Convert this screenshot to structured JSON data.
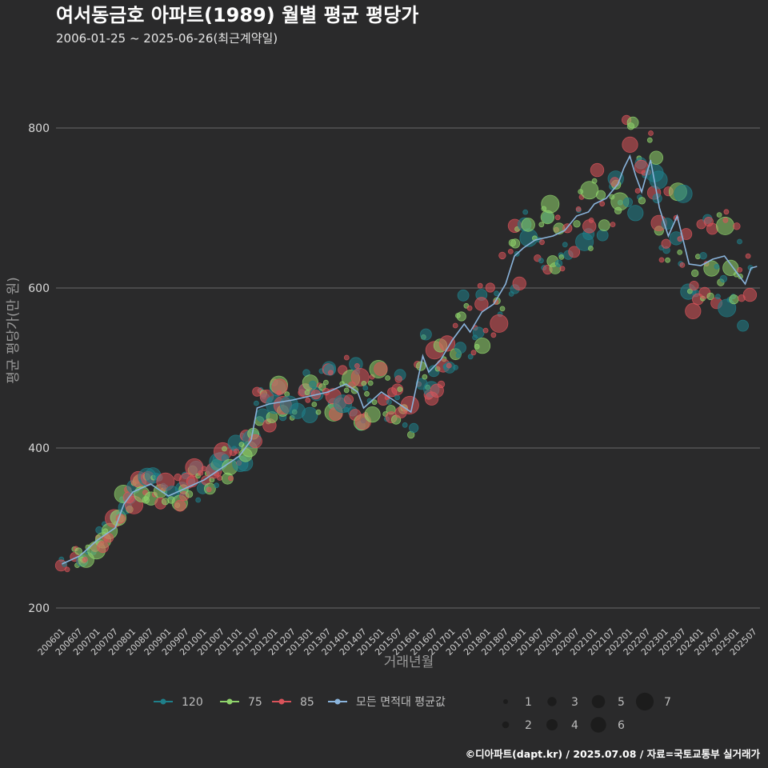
{
  "colors": {
    "background": "#2a2a2b",
    "grid": "#5c5c5c",
    "size_120": "#1f7f8a",
    "size_75": "#8fd36b",
    "size_85": "#d9535a",
    "avg_line": "#8ab4dc"
  },
  "chart_data": {
    "type": "scatter",
    "title": "여서동금호 아파트(1989) 월별 평균 평당가",
    "subtitle": "2006-01-25 ~ 2025-06-26(최근계약일)",
    "xlabel": "거래년월",
    "ylabel": "평균 평당가(만 원)",
    "ylim": [
      180,
      900
    ],
    "yticks": [
      200,
      400,
      600,
      800
    ],
    "x_range_months": [
      -2,
      236
    ],
    "xtick_labels": [
      "200601",
      "200607",
      "200701",
      "200707",
      "200801",
      "200807",
      "200901",
      "200907",
      "201001",
      "201007",
      "201101",
      "201107",
      "201201",
      "201207",
      "201301",
      "201307",
      "201401",
      "201407",
      "201501",
      "201507",
      "201601",
      "201607",
      "201701",
      "201707",
      "201801",
      "201807",
      "201901",
      "201907",
      "202001",
      "202007",
      "202101",
      "202107",
      "202201",
      "202207",
      "202301",
      "202307",
      "202401",
      "202407",
      "202501",
      "202507"
    ],
    "legend_series": [
      {
        "name": "120",
        "color_key": "size_120"
      },
      {
        "name": "75",
        "color_key": "size_75"
      },
      {
        "name": "85",
        "color_key": "size_85"
      },
      {
        "name": "모든 면적대 평균값",
        "color_key": "avg_line"
      }
    ],
    "size_legend": [
      1,
      2,
      3,
      4,
      5,
      6,
      7
    ],
    "avg_line_anchor_points": [
      [
        0,
        255
      ],
      [
        6,
        265
      ],
      [
        12,
        285
      ],
      [
        18,
        300
      ],
      [
        21,
        330
      ],
      [
        24,
        345
      ],
      [
        30,
        355
      ],
      [
        36,
        340
      ],
      [
        42,
        350
      ],
      [
        48,
        360
      ],
      [
        54,
        375
      ],
      [
        60,
        390
      ],
      [
        64,
        410
      ],
      [
        66,
        450
      ],
      [
        70,
        455
      ],
      [
        78,
        460
      ],
      [
        84,
        465
      ],
      [
        90,
        470
      ],
      [
        96,
        480
      ],
      [
        100,
        470
      ],
      [
        102,
        450
      ],
      [
        108,
        470
      ],
      [
        114,
        455
      ],
      [
        118,
        445
      ],
      [
        122,
        515
      ],
      [
        124,
        495
      ],
      [
        128,
        510
      ],
      [
        132,
        535
      ],
      [
        136,
        555
      ],
      [
        138,
        545
      ],
      [
        142,
        570
      ],
      [
        146,
        580
      ],
      [
        150,
        605
      ],
      [
        153,
        640
      ],
      [
        156,
        650
      ],
      [
        160,
        660
      ],
      [
        166,
        665
      ],
      [
        170,
        672
      ],
      [
        174,
        690
      ],
      [
        178,
        695
      ],
      [
        180,
        705
      ],
      [
        184,
        712
      ],
      [
        188,
        730
      ],
      [
        190,
        750
      ],
      [
        192,
        765
      ],
      [
        194,
        740
      ],
      [
        196,
        720
      ],
      [
        199,
        760
      ],
      [
        202,
        700
      ],
      [
        205,
        665
      ],
      [
        208,
        690
      ],
      [
        210,
        660
      ],
      [
        212,
        630
      ],
      [
        216,
        628
      ],
      [
        220,
        636
      ],
      [
        224,
        640
      ],
      [
        228,
        620
      ],
      [
        231,
        605
      ],
      [
        233,
        625
      ],
      [
        235,
        627
      ]
    ],
    "scatter_note": "Monthly transaction averages for area types 120, 75, 85; point size = number of transactions (1-7)"
  },
  "caption": "©디아파트(dapt.kr) / 2025.07.08 / 자료=국토교통부 실거래가"
}
